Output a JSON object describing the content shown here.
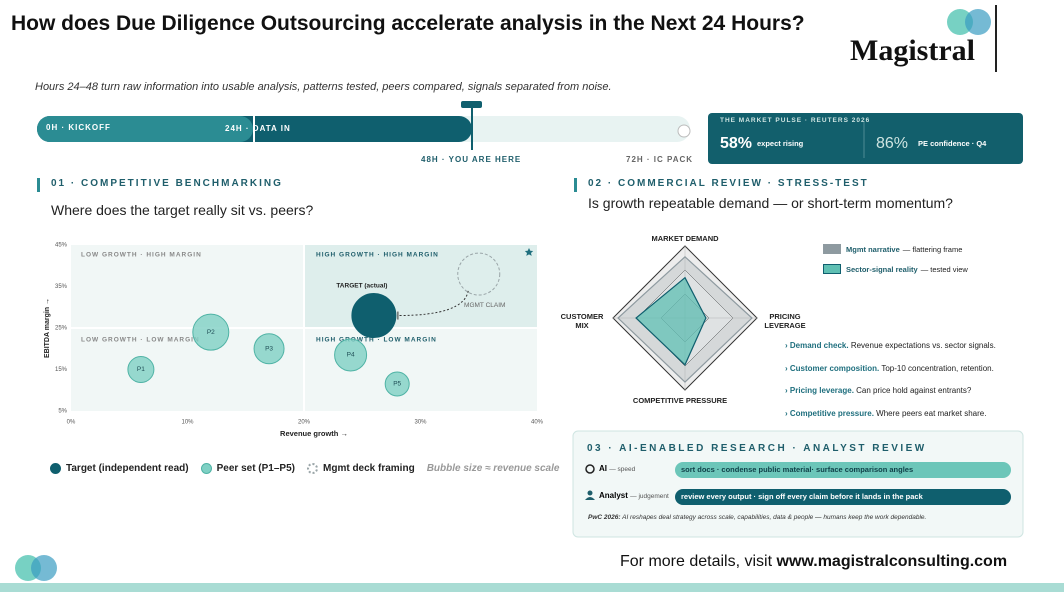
{
  "header": {
    "title": "How does Due Diligence Outsourcing accelerate analysis in the Next 24 Hours?",
    "brand": "Magistral",
    "subtitle": "Hours 24–48 turn raw information into usable analysis, patterns tested, peers compared, signals separated from noise."
  },
  "timeline": {
    "stages": [
      "0H · KICKOFF",
      "24H · DATA IN",
      "48H · YOU ARE HERE",
      "72H · IC PACK"
    ]
  },
  "pulse": {
    "title": "THE MARKET PULSE · REUTERS 2026",
    "stats": [
      {
        "value": "58%",
        "label": "expect rising"
      },
      {
        "value": "86%",
        "label": "PE confidence · Q4"
      }
    ]
  },
  "sections": [
    {
      "heading": "01 · COMPETITIVE BENCHMARKING",
      "question": "Where does the target really sit vs. peers?"
    },
    {
      "heading": "02 · COMMERCIAL REVIEW · STRESS-TEST",
      "question": "Is growth repeatable demand — or short-term momentum?"
    }
  ],
  "chart_data": [
    {
      "type": "scatter",
      "x_label": "Revenue growth →",
      "y_label": "EBITDA margin →",
      "xlim": [
        0,
        40
      ],
      "xticks": [
        {
          "value": 0,
          "label": "0%"
        },
        {
          "value": 10,
          "label": "10%"
        },
        {
          "value": 20,
          "label": "20%"
        },
        {
          "value": 30,
          "label": "30%"
        },
        {
          "value": 40,
          "label": "40%"
        }
      ],
      "ylim": [
        5,
        45
      ],
      "yticks": [
        {
          "value": 5,
          "label": "5%"
        },
        {
          "value": 15,
          "label": "15%"
        },
        {
          "value": 25,
          "label": "25%"
        },
        {
          "value": 35,
          "label": "35%"
        },
        {
          "value": 45,
          "label": "45%"
        }
      ],
      "quadrant_split": {
        "x": 20,
        "y": 25
      },
      "quadrants": [
        "LOW GROWTH · HIGH MARGIN",
        "HIGH GROWTH · HIGH MARGIN",
        "LOW GROWTH · LOW MARGIN",
        "HIGH GROWTH · LOW MARGIN"
      ],
      "series": [
        {
          "name": "Target (independent read)",
          "color": "#0f5f6e",
          "x": [
            26
          ],
          "y": [
            28
          ],
          "sizes": [
            22
          ],
          "labels": [
            "TARGET (actual)"
          ]
        },
        {
          "name": "Peer set (P1–P5)",
          "color": "#7fd0c4",
          "x": [
            6,
            12,
            17,
            24,
            28
          ],
          "y": [
            15,
            24,
            20,
            18.5,
            11.5
          ],
          "sizes": [
            13,
            18,
            15,
            16,
            12
          ],
          "labels": [
            "P1",
            "P2",
            "P3",
            "P4",
            "P5"
          ]
        },
        {
          "name": "Mgmt deck framing",
          "color": "#9aa5a8",
          "dashed": true,
          "x": [
            35
          ],
          "y": [
            38
          ],
          "sizes": [
            21
          ],
          "labels": [
            "MGMT CLAIM"
          ]
        }
      ],
      "note": "Bubble size ≈ revenue scale"
    },
    {
      "type": "radar",
      "axes": [
        "MARKET DEMAND",
        "PRICING LEVERAGE",
        "COMPETITIVE PRESSURE",
        "CUSTOMER MIX"
      ],
      "rlim": [
        0,
        100
      ],
      "series": [
        {
          "name": "Mgmt narrative",
          "note": "— flattering frame",
          "color": "#8e9aa0",
          "values": [
            85,
            93,
            89,
            93
          ]
        },
        {
          "name": "Sector-signal reality",
          "note": "— tested view",
          "color": "#5fbfb3",
          "values": [
            56,
            29,
            65,
            68
          ]
        }
      ]
    }
  ],
  "findings": [
    {
      "lead": "Demand check.",
      "text": "Revenue expectations vs. sector signals."
    },
    {
      "lead": "Customer composition.",
      "text": "Top-10 concentration, retention."
    },
    {
      "lead": "Pricing leverage.",
      "text": "Can price hold against entrants?"
    },
    {
      "lead": "Competitive pressure.",
      "text": "Where peers eat market share."
    }
  ],
  "research": {
    "heading": "03 · AI-ENABLED RESEARCH · ANALYST REVIEW",
    "rows": [
      {
        "role": "AI",
        "note": "— speed",
        "task": "sort docs · condense public material· surface comparison angles"
      },
      {
        "role": "Analyst",
        "note": "— judgement",
        "task": "review every output · sign off every claim before it lands in the pack"
      }
    ],
    "source": "PwC 2026:",
    "note": "AI reshapes deal strategy across scale, capabilities, data & people — humans keep the work dependable."
  },
  "footer": {
    "text": "For more details, visit",
    "link": "www.magistralconsulting.com"
  }
}
